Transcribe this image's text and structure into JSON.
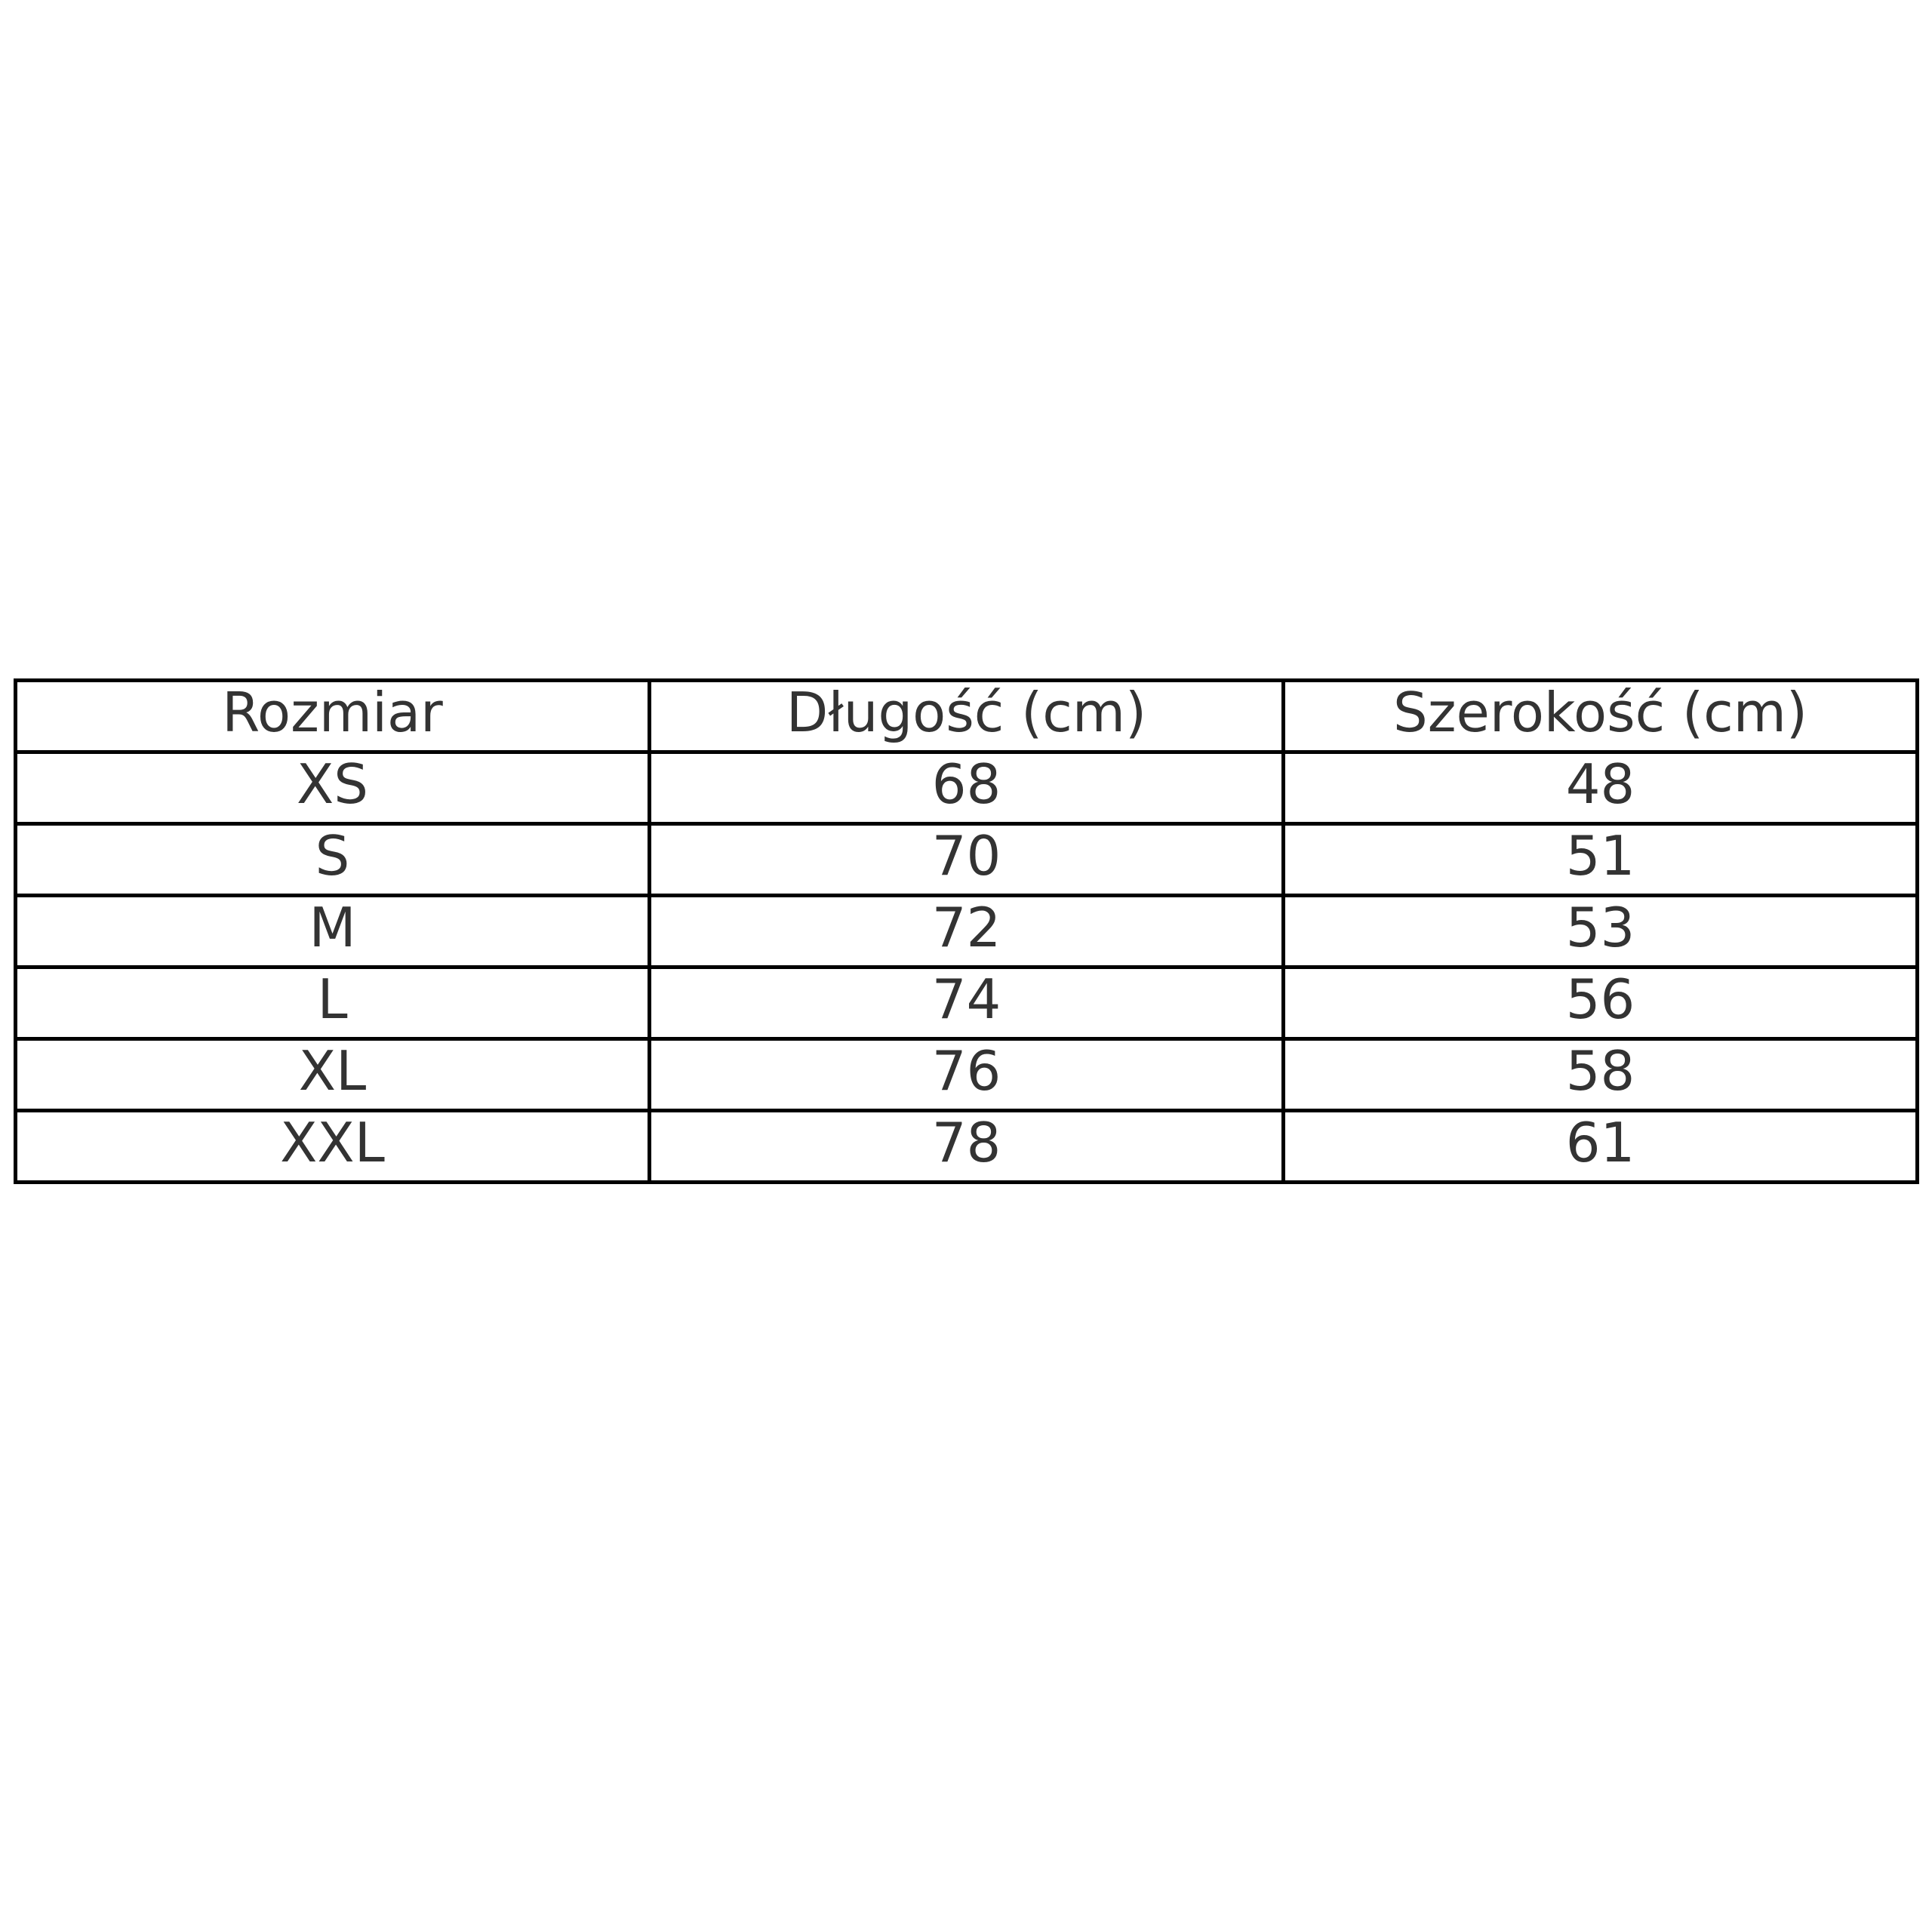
{
  "table": {
    "headers": [
      "Rozmiar",
      "Długość (cm)",
      "Szerokość (cm)"
    ],
    "rows": [
      [
        "XS",
        "68",
        "48"
      ],
      [
        "S",
        "70",
        "51"
      ],
      [
        "M",
        "72",
        "53"
      ],
      [
        "L",
        "74",
        "56"
      ],
      [
        "XL",
        "76",
        "58"
      ],
      [
        "XXL",
        "78",
        "61"
      ]
    ]
  }
}
